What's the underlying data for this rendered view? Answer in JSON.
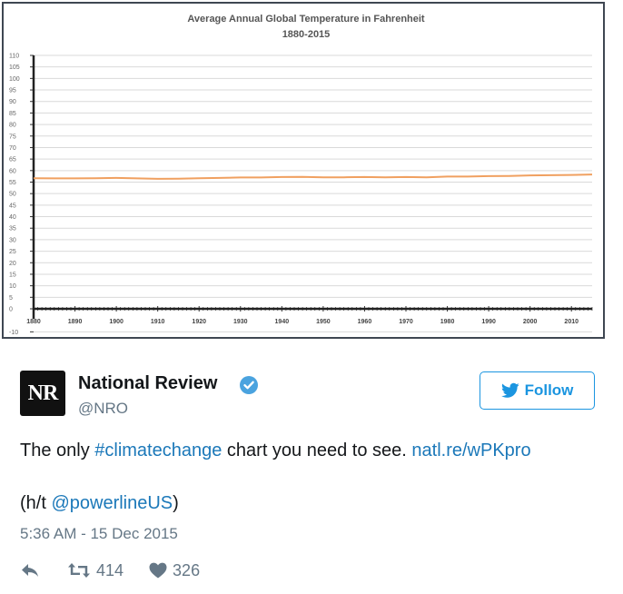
{
  "chart_data": {
    "type": "line",
    "title": "Average Annual Global Temperature in Fahrenheit",
    "subtitle": "1880-2015",
    "xlabel": "",
    "ylabel": "",
    "xlim": [
      1880,
      2015
    ],
    "ylim": [
      -10,
      110
    ],
    "x_ticks": [
      1880,
      1890,
      1900,
      1910,
      1920,
      1930,
      1940,
      1950,
      1960,
      1970,
      1980,
      1990,
      2000,
      2010
    ],
    "y_ticks": [
      -10,
      0,
      5,
      10,
      15,
      20,
      25,
      30,
      35,
      40,
      45,
      50,
      55,
      60,
      65,
      70,
      75,
      80,
      85,
      90,
      95,
      100,
      105,
      110
    ],
    "grid": true,
    "line_color": "#f0a060",
    "series": [
      {
        "x": [
          1880,
          1885,
          1890,
          1895,
          1900,
          1905,
          1910,
          1915,
          1920,
          1925,
          1930,
          1935,
          1940,
          1945,
          1950,
          1955,
          1960,
          1965,
          1970,
          1975,
          1980,
          1985,
          1990,
          1995,
          2000,
          2005,
          2010,
          2015
        ],
        "values": [
          56.7,
          56.6,
          56.6,
          56.7,
          56.8,
          56.6,
          56.4,
          56.5,
          56.7,
          56.8,
          57.0,
          57.0,
          57.2,
          57.3,
          57.1,
          57.1,
          57.2,
          57.1,
          57.2,
          57.1,
          57.4,
          57.4,
          57.6,
          57.7,
          57.9,
          58.0,
          58.1,
          58.3
        ]
      }
    ]
  },
  "tweet": {
    "avatar_text": "NR",
    "display_name": "National Review",
    "handle": "@NRO",
    "follow_label": "Follow",
    "text_prefix": "The only ",
    "hashtag": "#climatechange",
    "text_middle": " chart you need to see. ",
    "link": "natl.re/wPKpro",
    "ht_prefix": "(h/t ",
    "ht_mention": "@powerlineUS",
    "ht_suffix": ")",
    "timestamp": "5:36 AM - 15 Dec 2015",
    "retweets": "414",
    "likes": "326"
  },
  "colors": {
    "twitter_blue": "#1b95e0",
    "link_blue": "#1b78b9",
    "muted_gray": "#657786"
  }
}
